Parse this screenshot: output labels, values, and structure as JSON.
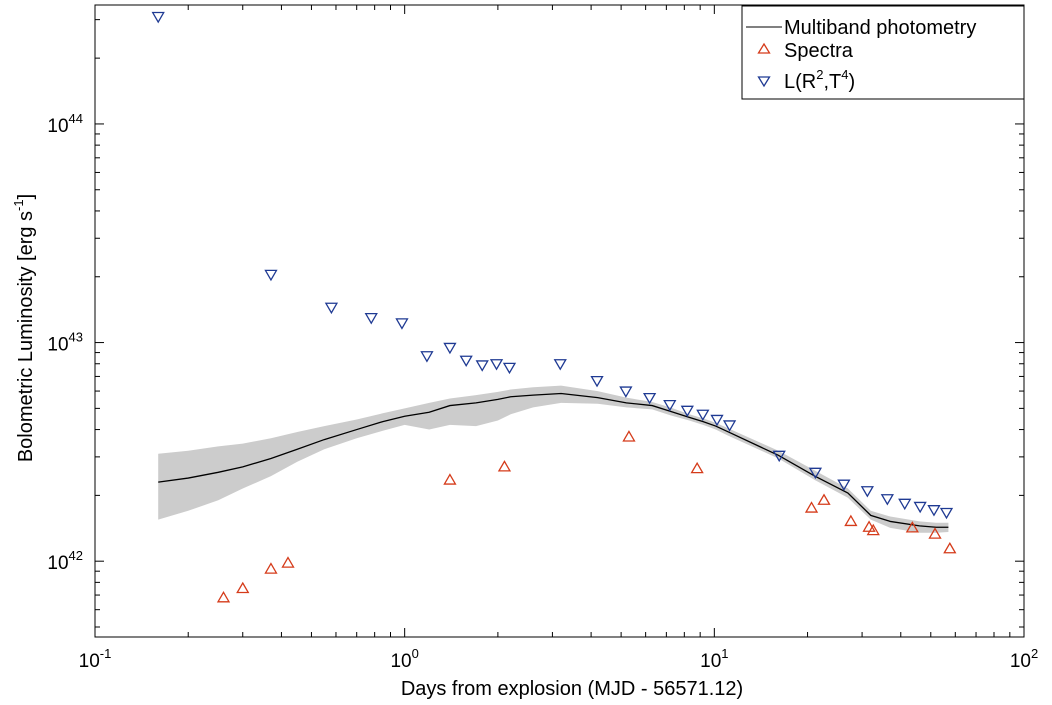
{
  "chart_data": {
    "type": "scatter",
    "xlabel": "Days from explosion (MJD - 56571.12)",
    "ylabel": "Bolometric Luminosity [erg s",
    "ylabel_sup": "-1",
    "ylabel_end": "]",
    "x_scale": "log",
    "y_scale": "log",
    "xlim": [
      0.1,
      100
    ],
    "ylim": [
      4.5e+41,
      3.5e+44
    ],
    "x_ticks": [
      {
        "value": 0.1,
        "base": "10",
        "exp": "-1"
      },
      {
        "value": 1,
        "base": "10",
        "exp": "0"
      },
      {
        "value": 10,
        "base": "10",
        "exp": "1"
      },
      {
        "value": 100,
        "base": "10",
        "exp": "2"
      }
    ],
    "y_ticks": [
      {
        "value": 1e+42,
        "base": "10",
        "exp": "42"
      },
      {
        "value": 1e+43,
        "base": "10",
        "exp": "43"
      },
      {
        "value": 1e+44,
        "base": "10",
        "exp": "44"
      }
    ],
    "grid": false,
    "legend_position": "top-right",
    "legend": [
      {
        "label": "Multiband photometry",
        "marker": "line"
      },
      {
        "label": "Spectra",
        "marker": "triangle-up"
      },
      {
        "label_prefix": "L(R",
        "label_sup1": "2",
        "label_mid": ",T",
        "label_sup2": "4",
        "label_suffix": ")",
        "marker": "triangle-down"
      }
    ],
    "colors": {
      "line": "#000000",
      "band": "#cccccc",
      "spectra": "#d53b1a",
      "lrt": "#1f3a93",
      "axis": "#000000"
    },
    "series": [
      {
        "name": "Multiband photometry",
        "kind": "line_with_band",
        "x": [
          0.16,
          0.2,
          0.25,
          0.3,
          0.37,
          0.45,
          0.55,
          0.7,
          0.85,
          1.0,
          1.2,
          1.4,
          1.7,
          2.0,
          2.2,
          2.6,
          3.2,
          4.2,
          5.2,
          6.3,
          7.2,
          8.3,
          9.2,
          10.1,
          11.1,
          16.1,
          21.1,
          27.0,
          32.0,
          37.0,
          46.0,
          52.0,
          57.0
        ],
        "y": [
          2.3e+42,
          2.4e+42,
          2.55e+42,
          2.7e+42,
          2.95e+42,
          3.25e+42,
          3.6e+42,
          4e+42,
          4.35e+42,
          4.6e+42,
          4.8e+42,
          5.15e+42,
          5.3e+42,
          5.5e+42,
          5.65e+42,
          5.75e+42,
          5.85e+42,
          5.6e+42,
          5.3e+42,
          5.15e+42,
          4.85e+42,
          4.55e+42,
          4.35e+42,
          4.15e+42,
          3.9e+42,
          3.05e+42,
          2.45e+42,
          2.05e+42,
          1.62e+42,
          1.52e+42,
          1.45e+42,
          1.43e+42,
          1.43e+42
        ],
        "y_low": [
          1.55e+42,
          1.7e+42,
          1.9e+42,
          2.15e+42,
          2.45e+42,
          2.85e+42,
          3.25e+42,
          3.65e+42,
          3.95e+42,
          4.2e+42,
          4e+42,
          4.2e+42,
          4.15e+42,
          4.4e+42,
          4.7e+42,
          5.05e+42,
          5.3e+42,
          5.25e+42,
          5.05e+42,
          4.95e+42,
          4.65e+42,
          4.4e+42,
          4.2e+42,
          4e+42,
          3.75e+42,
          2.95e+42,
          2.35e+42,
          1.95e+42,
          1.55e+42,
          1.42e+42,
          1.35e+42,
          1.35e+42,
          1.36e+42
        ],
        "y_high": [
          3.1e+42,
          3.2e+42,
          3.35e+42,
          3.45e+42,
          3.65e+42,
          3.9e+42,
          4.15e+42,
          4.45e+42,
          4.75e+42,
          5e+42,
          5.3e+42,
          5.55e+42,
          5.75e+42,
          5.95e+42,
          6.1e+42,
          6.25e+42,
          6.35e+42,
          6e+42,
          5.6e+42,
          5.35e+42,
          5.05e+42,
          4.7e+42,
          4.5e+42,
          4.3e+42,
          4.05e+42,
          3.2e+42,
          2.6e+42,
          2.15e+42,
          1.7e+42,
          1.6e+42,
          1.52e+42,
          1.5e+42,
          1.5e+42
        ]
      },
      {
        "name": "Spectra",
        "kind": "triangle-up",
        "x": [
          0.26,
          0.3,
          0.37,
          0.42,
          1.4,
          2.1,
          5.3,
          8.8,
          20.6,
          22.6,
          27.6,
          31.6,
          32.6,
          43.6,
          51.6,
          57.6
        ],
        "y": [
          6.8e+41,
          7.5e+41,
          9.2e+41,
          9.8e+41,
          2.35e+42,
          2.7e+42,
          3.7e+42,
          2.65e+42,
          1.75e+42,
          1.9e+42,
          1.52e+42,
          1.43e+42,
          1.38e+42,
          1.42e+42,
          1.33e+42,
          1.14e+42
        ]
      },
      {
        "name": "L(R2,T4)",
        "kind": "triangle-down",
        "x": [
          0.16,
          0.37,
          0.58,
          0.78,
          0.98,
          1.18,
          1.4,
          1.58,
          1.78,
          1.98,
          2.18,
          3.18,
          4.18,
          5.18,
          6.18,
          7.18,
          8.18,
          9.18,
          10.2,
          11.2,
          16.2,
          21.2,
          26.2,
          31.2,
          36.2,
          41.2,
          46.2,
          51.2,
          56.2
        ],
        "y": [
          3.1e+44,
          2.05e+43,
          1.45e+43,
          1.3e+43,
          1.23e+43,
          8.7e+42,
          9.5e+42,
          8.3e+42,
          7.9e+42,
          8e+42,
          7.7e+42,
          8e+42,
          6.7e+42,
          6e+42,
          5.6e+42,
          5.2e+42,
          4.9e+42,
          4.7e+42,
          4.45e+42,
          4.2e+42,
          3.05e+42,
          2.55e+42,
          2.25e+42,
          2.1e+42,
          1.93e+42,
          1.84e+42,
          1.78e+42,
          1.72e+42,
          1.67e+42
        ]
      }
    ]
  }
}
